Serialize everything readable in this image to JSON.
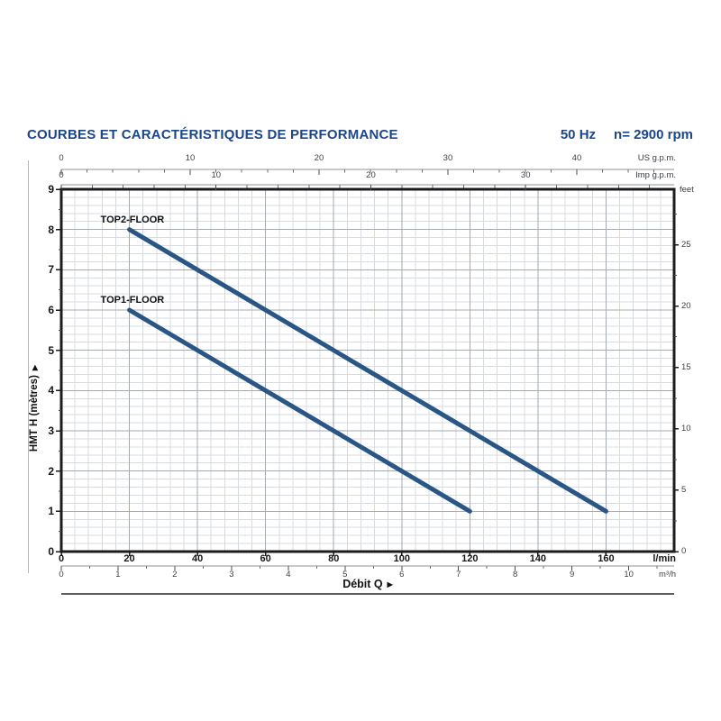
{
  "header": {
    "title": "COURBES ET CARACTÉRISTIQUES DE PERFORMANCE",
    "frequency": "50 Hz",
    "speed": "n= 2900 rpm"
  },
  "arrows": {
    "right": "▶"
  },
  "chart_data": {
    "type": "line",
    "title": "COURBES ET CARACTÉRISTIQUES DE PERFORMANCE",
    "grid": "on",
    "x_axis": {
      "label": "Débit Q",
      "primary": {
        "unit": "l/min",
        "ticks": [
          0,
          20,
          40,
          60,
          80,
          100,
          120,
          140,
          160
        ],
        "range": [
          0,
          180
        ],
        "minor_step": 4
      },
      "secondary_m3h": {
        "unit": "m³/h",
        "ticks": [
          0,
          1,
          2,
          3,
          4,
          5,
          6,
          7,
          8,
          9,
          10
        ],
        "minor_step": 0.5
      },
      "top_us_gpm": {
        "unit": "US g.p.m.",
        "ticks": [
          0,
          10,
          20,
          30,
          40
        ],
        "minor_step": 2
      },
      "top_imp_gpm": {
        "unit": "Imp g.p.m.",
        "ticks": [
          0,
          10,
          20,
          30
        ],
        "minor_step": 2
      }
    },
    "y_axis": {
      "left": {
        "label": "HMT H (mètres)",
        "ticks": [
          0,
          1,
          2,
          3,
          4,
          5,
          6,
          7,
          8,
          9
        ],
        "range": [
          0,
          9
        ],
        "minor_step": 0.5
      },
      "right_feet": {
        "unit": "feet",
        "ticks": [
          0,
          5,
          10,
          15,
          20,
          25
        ],
        "minor_step": 2.5
      }
    },
    "series": [
      {
        "name": "TOP2-FLOOR",
        "points": [
          {
            "q_l_min": 20,
            "h_m": 8
          },
          {
            "q_l_min": 160,
            "h_m": 1
          }
        ]
      },
      {
        "name": "TOP1-FLOOR",
        "points": [
          {
            "q_l_min": 20,
            "h_m": 6
          },
          {
            "q_l_min": 120,
            "h_m": 1
          }
        ]
      }
    ],
    "colors": {
      "curve": "#2a5685",
      "title_blue": "#1b4688",
      "grid_major": "#a6abb2",
      "grid_minor": "#d7dbe0"
    }
  }
}
